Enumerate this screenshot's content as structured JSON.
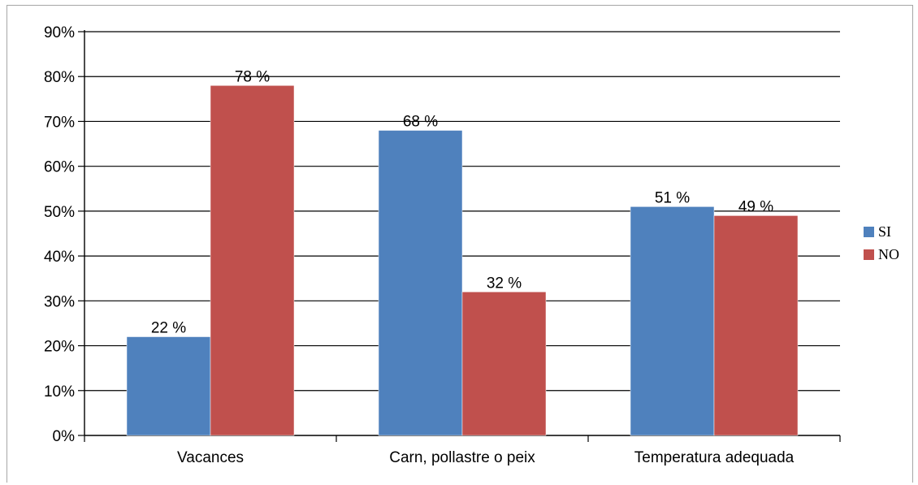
{
  "chart_data": {
    "type": "bar",
    "categories": [
      "Vacances",
      "Carn, pollastre o peix",
      "Temperatura adequada"
    ],
    "series": [
      {
        "name": "SI",
        "values": [
          22,
          68,
          51
        ],
        "labels": [
          "22 %",
          "68 %",
          "51 %"
        ],
        "color": "#4f81bd"
      },
      {
        "name": "NO",
        "values": [
          78,
          32,
          49
        ],
        "labels": [
          "78 %",
          "32 %",
          "49 %"
        ],
        "color": "#c0504d"
      }
    ],
    "title": "",
    "xlabel": "",
    "ylabel": "",
    "ylim": [
      0,
      90
    ],
    "yticks": [
      0,
      10,
      20,
      30,
      40,
      50,
      60,
      70,
      80,
      90
    ],
    "ytick_labels": [
      "0%",
      "10%",
      "20%",
      "30%",
      "40%",
      "50%",
      "60%",
      "70%",
      "80%",
      "90%"
    ],
    "grid": true,
    "legend": "right"
  }
}
